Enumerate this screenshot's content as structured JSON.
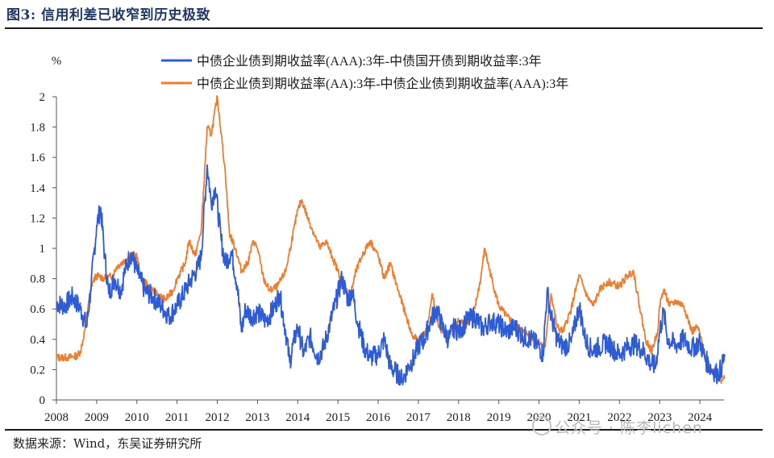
{
  "figure": {
    "title": "图3: 信用利差已收窄到历史极致",
    "source": "数据来源：Wind，东吴证券研究所",
    "watermark": "公众号 · 陈李lichen"
  },
  "chart_data": {
    "type": "line",
    "ylabel": "%",
    "ylim": [
      0,
      2
    ],
    "yticks": [
      "0",
      "0.2",
      "0.4",
      "0.6",
      "0.8",
      "1",
      "1.2",
      "1.4",
      "1.6",
      "1.8",
      "2"
    ],
    "xlim": [
      2008,
      2024.6
    ],
    "xticks": [
      "2008",
      "2009",
      "2010",
      "2011",
      "2012",
      "2013",
      "2014",
      "2015",
      "2016",
      "2017",
      "2018",
      "2019",
      "2020",
      "2021",
      "2022",
      "2023",
      "2024"
    ],
    "grid": false,
    "legend_position": "top",
    "series": [
      {
        "name": "中债企业债到期收益率(AAA):3年-中债国开债到期收益率:3年",
        "color": "#2e5bd6",
        "points": [
          [
            2008.0,
            0.64
          ],
          [
            2008.2,
            0.62
          ],
          [
            2008.4,
            0.68
          ],
          [
            2008.6,
            0.6
          ],
          [
            2008.75,
            0.48
          ],
          [
            2008.85,
            0.72
          ],
          [
            2009.0,
            1.15
          ],
          [
            2009.1,
            1.27
          ],
          [
            2009.2,
            0.95
          ],
          [
            2009.3,
            0.7
          ],
          [
            2009.45,
            0.8
          ],
          [
            2009.6,
            0.72
          ],
          [
            2009.7,
            0.85
          ],
          [
            2009.85,
            0.97
          ],
          [
            2010.0,
            0.85
          ],
          [
            2010.2,
            0.72
          ],
          [
            2010.4,
            0.68
          ],
          [
            2010.6,
            0.62
          ],
          [
            2010.8,
            0.55
          ],
          [
            2011.0,
            0.62
          ],
          [
            2011.2,
            0.72
          ],
          [
            2011.4,
            0.82
          ],
          [
            2011.5,
            0.86
          ],
          [
            2011.6,
            0.95
          ],
          [
            2011.75,
            1.55
          ],
          [
            2011.85,
            1.3
          ],
          [
            2011.95,
            1.4
          ],
          [
            2012.1,
            1.05
          ],
          [
            2012.2,
            0.9
          ],
          [
            2012.35,
            0.98
          ],
          [
            2012.5,
            0.75
          ],
          [
            2012.6,
            0.45
          ],
          [
            2012.7,
            0.6
          ],
          [
            2012.85,
            0.55
          ],
          [
            2013.0,
            0.58
          ],
          [
            2013.2,
            0.52
          ],
          [
            2013.4,
            0.6
          ],
          [
            2013.55,
            0.7
          ],
          [
            2013.7,
            0.45
          ],
          [
            2013.8,
            0.25
          ],
          [
            2013.9,
            0.38
          ],
          [
            2014.0,
            0.48
          ],
          [
            2014.15,
            0.3
          ],
          [
            2014.3,
            0.42
          ],
          [
            2014.5,
            0.28
          ],
          [
            2014.65,
            0.35
          ],
          [
            2014.8,
            0.5
          ],
          [
            2014.95,
            0.65
          ],
          [
            2015.1,
            0.8
          ],
          [
            2015.25,
            0.66
          ],
          [
            2015.35,
            0.72
          ],
          [
            2015.5,
            0.5
          ],
          [
            2015.65,
            0.35
          ],
          [
            2015.8,
            0.28
          ],
          [
            2016.0,
            0.3
          ],
          [
            2016.15,
            0.4
          ],
          [
            2016.3,
            0.22
          ],
          [
            2016.45,
            0.18
          ],
          [
            2016.6,
            0.13
          ],
          [
            2016.75,
            0.22
          ],
          [
            2016.9,
            0.28
          ],
          [
            2017.0,
            0.36
          ],
          [
            2017.15,
            0.4
          ],
          [
            2017.3,
            0.52
          ],
          [
            2017.45,
            0.6
          ],
          [
            2017.6,
            0.48
          ],
          [
            2017.75,
            0.4
          ],
          [
            2017.9,
            0.48
          ],
          [
            2018.0,
            0.45
          ],
          [
            2018.2,
            0.52
          ],
          [
            2018.4,
            0.55
          ],
          [
            2018.6,
            0.47
          ],
          [
            2018.8,
            0.52
          ],
          [
            2019.0,
            0.5
          ],
          [
            2019.2,
            0.45
          ],
          [
            2019.4,
            0.48
          ],
          [
            2019.6,
            0.42
          ],
          [
            2019.8,
            0.4
          ],
          [
            2020.0,
            0.35
          ],
          [
            2020.1,
            0.3
          ],
          [
            2020.2,
            0.72
          ],
          [
            2020.3,
            0.55
          ],
          [
            2020.45,
            0.4
          ],
          [
            2020.6,
            0.35
          ],
          [
            2020.8,
            0.38
          ],
          [
            2021.0,
            0.62
          ],
          [
            2021.15,
            0.4
          ],
          [
            2021.3,
            0.33
          ],
          [
            2021.5,
            0.35
          ],
          [
            2021.7,
            0.38
          ],
          [
            2021.9,
            0.32
          ],
          [
            2022.0,
            0.3
          ],
          [
            2022.2,
            0.35
          ],
          [
            2022.4,
            0.37
          ],
          [
            2022.6,
            0.32
          ],
          [
            2022.75,
            0.25
          ],
          [
            2022.9,
            0.22
          ],
          [
            2023.0,
            0.45
          ],
          [
            2023.1,
            0.58
          ],
          [
            2023.2,
            0.4
          ],
          [
            2023.4,
            0.36
          ],
          [
            2023.6,
            0.4
          ],
          [
            2023.8,
            0.34
          ],
          [
            2024.0,
            0.38
          ],
          [
            2024.15,
            0.26
          ],
          [
            2024.3,
            0.2
          ],
          [
            2024.45,
            0.17
          ],
          [
            2024.55,
            0.22
          ],
          [
            2024.62,
            0.3
          ]
        ]
      },
      {
        "name": "中债企业债到期收益率(AA):3年-中债企业债到期收益率(AAA):3年",
        "color": "#ed7d31",
        "points": [
          [
            2008.0,
            0.28
          ],
          [
            2008.3,
            0.28
          ],
          [
            2008.5,
            0.29
          ],
          [
            2008.6,
            0.32
          ],
          [
            2008.7,
            0.45
          ],
          [
            2008.8,
            0.65
          ],
          [
            2008.9,
            0.78
          ],
          [
            2009.0,
            0.82
          ],
          [
            2009.2,
            0.8
          ],
          [
            2009.4,
            0.82
          ],
          [
            2009.5,
            0.88
          ],
          [
            2009.7,
            0.92
          ],
          [
            2009.85,
            0.96
          ],
          [
            2010.0,
            0.95
          ],
          [
            2010.1,
            0.8
          ],
          [
            2010.3,
            0.75
          ],
          [
            2010.5,
            0.7
          ],
          [
            2010.7,
            0.66
          ],
          [
            2010.9,
            0.72
          ],
          [
            2011.0,
            0.8
          ],
          [
            2011.2,
            0.9
          ],
          [
            2011.3,
            1.05
          ],
          [
            2011.45,
            0.95
          ],
          [
            2011.6,
            1.12
          ],
          [
            2011.75,
            1.8
          ],
          [
            2011.85,
            1.75
          ],
          [
            2012.0,
            2.0
          ],
          [
            2012.1,
            1.75
          ],
          [
            2012.2,
            1.5
          ],
          [
            2012.3,
            1.1
          ],
          [
            2012.45,
            1.0
          ],
          [
            2012.6,
            0.85
          ],
          [
            2012.75,
            0.9
          ],
          [
            2012.9,
            1.05
          ],
          [
            2013.0,
            1.0
          ],
          [
            2013.15,
            0.8
          ],
          [
            2013.3,
            0.72
          ],
          [
            2013.5,
            0.75
          ],
          [
            2013.7,
            0.85
          ],
          [
            2013.85,
            1.05
          ],
          [
            2014.0,
            1.25
          ],
          [
            2014.1,
            1.32
          ],
          [
            2014.25,
            1.2
          ],
          [
            2014.4,
            1.1
          ],
          [
            2014.55,
            1.0
          ],
          [
            2014.7,
            1.05
          ],
          [
            2014.85,
            0.95
          ],
          [
            2015.0,
            0.85
          ],
          [
            2015.15,
            0.75
          ],
          [
            2015.3,
            0.68
          ],
          [
            2015.45,
            0.85
          ],
          [
            2015.6,
            0.95
          ],
          [
            2015.8,
            1.05
          ],
          [
            2016.0,
            0.95
          ],
          [
            2016.15,
            0.8
          ],
          [
            2016.3,
            0.9
          ],
          [
            2016.5,
            0.72
          ],
          [
            2016.7,
            0.55
          ],
          [
            2016.85,
            0.42
          ],
          [
            2017.0,
            0.4
          ],
          [
            2017.2,
            0.45
          ],
          [
            2017.35,
            0.7
          ],
          [
            2017.5,
            0.48
          ],
          [
            2017.7,
            0.42
          ],
          [
            2017.9,
            0.5
          ],
          [
            2018.0,
            0.52
          ],
          [
            2018.2,
            0.5
          ],
          [
            2018.4,
            0.6
          ],
          [
            2018.55,
            0.8
          ],
          [
            2018.65,
            1.0
          ],
          [
            2018.75,
            0.88
          ],
          [
            2018.9,
            0.72
          ],
          [
            2019.0,
            0.62
          ],
          [
            2019.2,
            0.55
          ],
          [
            2019.4,
            0.5
          ],
          [
            2019.6,
            0.45
          ],
          [
            2019.8,
            0.42
          ],
          [
            2020.0,
            0.38
          ],
          [
            2020.15,
            0.35
          ],
          [
            2020.3,
            0.7
          ],
          [
            2020.45,
            0.48
          ],
          [
            2020.6,
            0.45
          ],
          [
            2020.8,
            0.6
          ],
          [
            2021.0,
            0.82
          ],
          [
            2021.1,
            0.75
          ],
          [
            2021.2,
            0.68
          ],
          [
            2021.35,
            0.62
          ],
          [
            2021.5,
            0.72
          ],
          [
            2021.7,
            0.78
          ],
          [
            2021.9,
            0.76
          ],
          [
            2022.0,
            0.75
          ],
          [
            2022.2,
            0.82
          ],
          [
            2022.35,
            0.85
          ],
          [
            2022.5,
            0.62
          ],
          [
            2022.65,
            0.4
          ],
          [
            2022.8,
            0.32
          ],
          [
            2022.95,
            0.45
          ],
          [
            2023.0,
            0.62
          ],
          [
            2023.1,
            0.73
          ],
          [
            2023.25,
            0.62
          ],
          [
            2023.4,
            0.65
          ],
          [
            2023.6,
            0.62
          ],
          [
            2023.8,
            0.45
          ],
          [
            2023.95,
            0.48
          ],
          [
            2024.1,
            0.32
          ],
          [
            2024.25,
            0.22
          ],
          [
            2024.4,
            0.16
          ],
          [
            2024.55,
            0.13
          ],
          [
            2024.62,
            0.15
          ]
        ]
      }
    ]
  }
}
